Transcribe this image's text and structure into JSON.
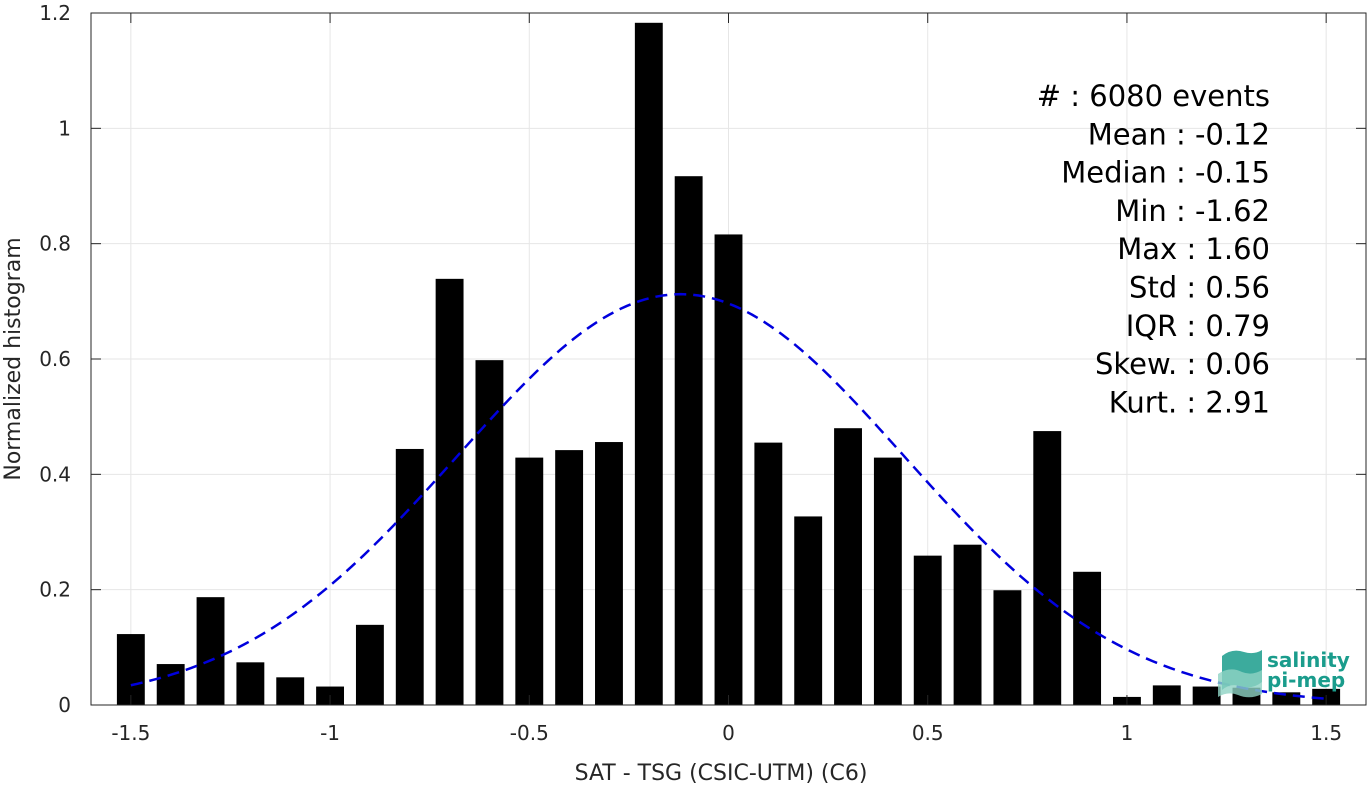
{
  "chart_data": {
    "type": "bar",
    "xlabel": "SAT - TSG (CSIC-UTM) (C6)",
    "ylabel": "Normalized histogram",
    "xlim": [
      -1.6,
      1.6
    ],
    "ylim": [
      0,
      1.2
    ],
    "xticks": [
      -1.5,
      -1,
      -0.5,
      0,
      0.5,
      1,
      1.5
    ],
    "xtick_labels": [
      "-1.5",
      "-1",
      "-0.5",
      "0",
      "0.5",
      "1",
      "1.5"
    ],
    "yticks": [
      0,
      0.2,
      0.4,
      0.6,
      0.8,
      1,
      1.2
    ],
    "ytick_labels": [
      "0",
      "0.2",
      "0.4",
      "0.6",
      "0.8",
      "1",
      "1.2"
    ],
    "grid": true,
    "bar_color": "#000000",
    "bin_width": 0.1,
    "x": [
      -1.5,
      -1.4,
      -1.3,
      -1.2,
      -1.1,
      -1.0,
      -0.9,
      -0.8,
      -0.7,
      -0.6,
      -0.5,
      -0.4,
      -0.3,
      -0.2,
      -0.1,
      0.0,
      0.1,
      0.2,
      0.3,
      0.4,
      0.5,
      0.6,
      0.7,
      0.8,
      0.9,
      1.0,
      1.1,
      1.2,
      1.3,
      1.4,
      1.5
    ],
    "values": [
      0.123,
      0.071,
      0.187,
      0.074,
      0.048,
      0.032,
      0.139,
      0.444,
      0.739,
      0.598,
      0.429,
      0.442,
      0.456,
      1.183,
      0.917,
      0.816,
      0.455,
      0.327,
      0.48,
      0.429,
      0.259,
      0.278,
      0.199,
      0.475,
      0.231,
      0.014,
      0.034,
      0.032,
      0.03,
      0.022,
      0.028
    ],
    "fit": {
      "type": "normal",
      "mean": -0.12,
      "std": 0.56,
      "color": "#0000dd",
      "style": "dashed",
      "x_range": [
        -1.5,
        1.5
      ]
    },
    "stats": [
      "#  : 6080 events",
      "Mean : -0.12",
      "Median : -0.15",
      "Min : -1.62",
      "Max : 1.60",
      "Std : 0.56",
      "IQR : 0.79",
      "Skew. : 0.06",
      "Kurt. : 2.91"
    ]
  },
  "logo": {
    "line1": "salinity",
    "line2": "pi-mep",
    "color": "#1a9c8c"
  }
}
